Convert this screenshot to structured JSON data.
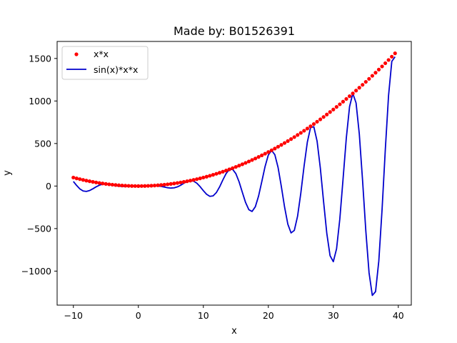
{
  "chart_data": {
    "type": "line",
    "title": "Made by: B01526391",
    "xlabel": "x",
    "ylabel": "y",
    "xlim": [
      -12.5,
      42
    ],
    "ylim": [
      -1400,
      1700
    ],
    "xticks": [
      -10,
      0,
      10,
      20,
      30,
      40
    ],
    "yticks": [
      -1000,
      -500,
      0,
      500,
      1000,
      1500
    ],
    "xtick_labels": [
      "−10",
      "0",
      "10",
      "20",
      "30",
      "40"
    ],
    "ytick_labels": [
      "−1000",
      "−500",
      "0",
      "500",
      "1000",
      "1500"
    ],
    "x_start": -10,
    "x_step": 0.5,
    "x_count": 100,
    "legend": {
      "position": "upper-left"
    },
    "series": [
      {
        "name": "x*x",
        "style": "points",
        "color": "#ff0000",
        "expression": "x*x"
      },
      {
        "name": "sin(x)*x*x",
        "style": "line",
        "color": "#0000cc",
        "expression": "sin(x)*x*x"
      }
    ]
  }
}
